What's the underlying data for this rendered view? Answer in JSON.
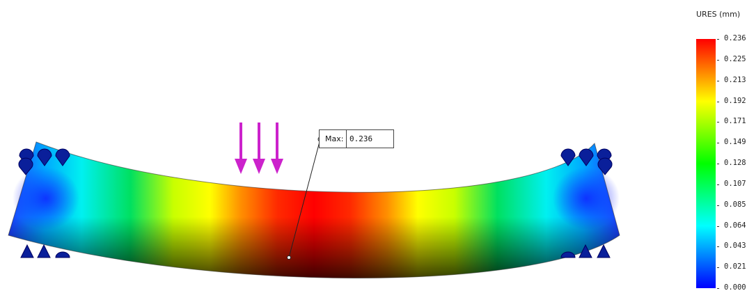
{
  "legend": {
    "title": "URES (mm)",
    "ticks": [
      "0.236",
      "0.225",
      "0.213",
      "0.192",
      "0.171",
      "0.149",
      "0.128",
      "0.107",
      "0.085",
      "0.064",
      "0.043",
      "0.021",
      "0.000"
    ],
    "min": 0.0,
    "max": 0.236
  },
  "probe": {
    "label": "Max:",
    "value": "0.236"
  },
  "colors": {
    "load_arrows": "#cc22cc",
    "fixtures": "#0a1f9a",
    "max": "#ff0000",
    "min": "#0000ff"
  },
  "icons": {
    "load": "downward-force-arrow-icon",
    "fixture_top": "fixed-restraint-cone-icon",
    "fixture_bottom": "roller-triangle-icon"
  }
}
